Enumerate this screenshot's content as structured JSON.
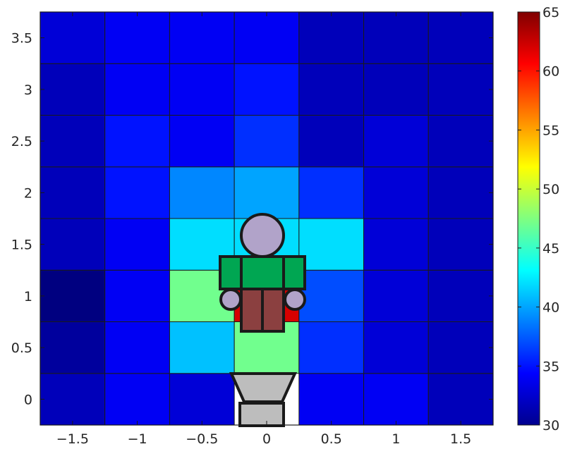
{
  "chart_data": {
    "type": "heatmap",
    "title": "",
    "xlabel": "",
    "ylabel": "",
    "x_edges": [
      -1.75,
      -1.25,
      -0.75,
      -0.25,
      0.25,
      0.75,
      1.25,
      1.75
    ],
    "y_edges": [
      -0.25,
      0.25,
      0.75,
      1.25,
      1.75,
      2.25,
      2.75,
      3.25,
      3.75
    ],
    "xlim": [
      -1.75,
      1.75
    ],
    "ylim": [
      -0.25,
      3.75
    ],
    "x_ticks": [
      -1.5,
      -1,
      -0.5,
      0,
      0.5,
      1,
      1.5
    ],
    "x_tick_labels": [
      "−1.5",
      "−1",
      "−0.5",
      "0",
      "0.5",
      "1",
      "1.5"
    ],
    "y_ticks": [
      0,
      0.5,
      1,
      1.5,
      2,
      2.5,
      3,
      3.5
    ],
    "y_tick_labels": [
      "0",
      "0.5",
      "1",
      "1.5",
      "2",
      "2.5",
      "3",
      "3.5"
    ],
    "values_rows_bottom_to_top": [
      [
        32,
        34,
        33,
        null,
        34,
        34,
        32
      ],
      [
        31,
        34,
        41,
        47,
        36,
        33,
        32
      ],
      [
        30,
        34,
        47,
        62,
        37,
        33,
        32
      ],
      [
        32,
        34,
        42,
        42,
        42,
        33,
        32
      ],
      [
        32,
        35,
        39,
        40,
        36,
        33,
        32
      ],
      [
        32,
        35,
        34,
        36,
        32,
        33,
        32
      ],
      [
        32,
        34,
        34,
        35,
        32,
        32,
        32
      ],
      [
        33,
        34,
        34,
        34,
        32,
        32,
        32
      ]
    ],
    "colorbar": {
      "range": [
        30,
        65
      ],
      "ticks": [
        30,
        35,
        40,
        45,
        50,
        55,
        60,
        65
      ],
      "tick_labels": [
        "30",
        "35",
        "40",
        "45",
        "50",
        "55",
        "60",
        "65"
      ],
      "colormap": "jet"
    },
    "grid": true,
    "figure_overlay": {
      "description": "person at desk with monitor stand",
      "head_color": "#b1a3c9",
      "torso_color": "#00a652",
      "legs_color": "#8b4040",
      "stand_color": "#bdbdbd",
      "outline_color": "#1a1a1a"
    }
  }
}
